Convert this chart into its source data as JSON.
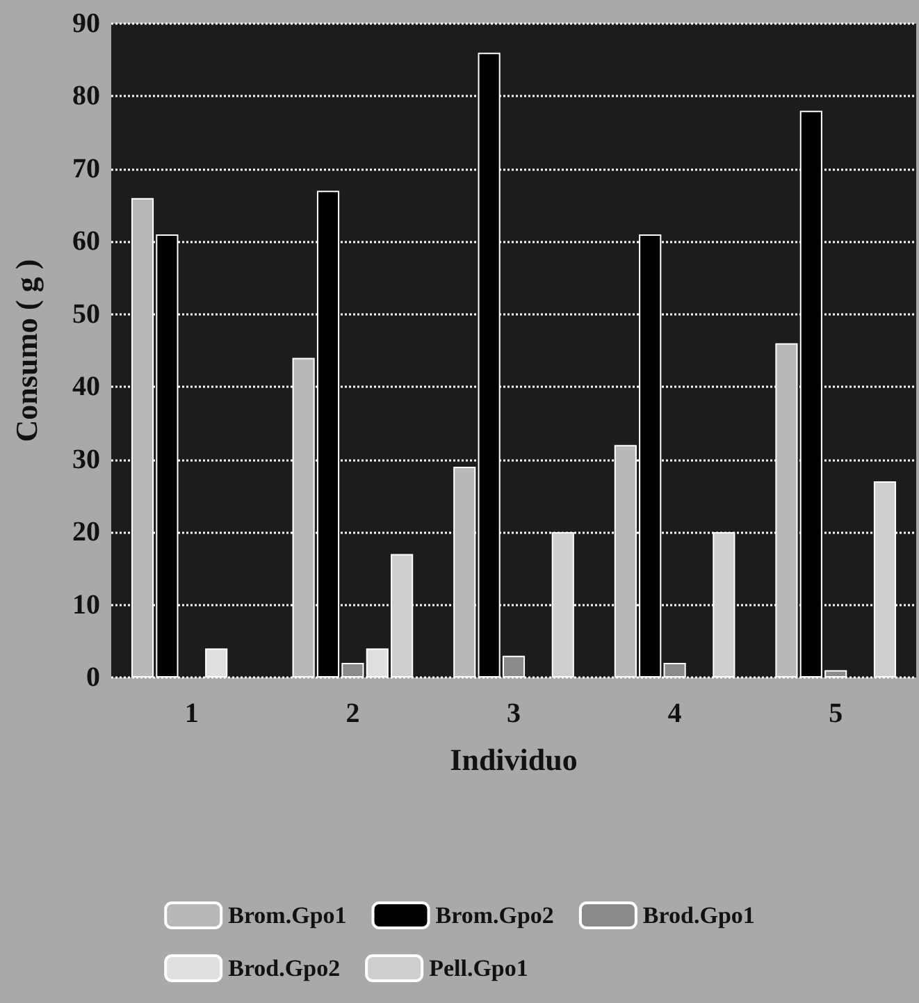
{
  "chart_data": {
    "type": "bar",
    "xlabel": "Individuo",
    "ylabel": "Consumo ( g )",
    "categories": [
      "1",
      "2",
      "3",
      "4",
      "5"
    ],
    "series": [
      {
        "name": "Brom.Gpo1",
        "color": "#b8b8b8",
        "values": [
          66,
          44,
          29,
          32,
          46
        ]
      },
      {
        "name": "Brom.Gpo2",
        "color": "#000000",
        "values": [
          61,
          67,
          86,
          61,
          78
        ]
      },
      {
        "name": "Brod.Gpo1",
        "color": "#8a8a8a",
        "values": [
          null,
          2,
          3,
          2,
          1
        ]
      },
      {
        "name": "Brod.Gpo2",
        "color": "#e0e0e0",
        "values": [
          4,
          4,
          null,
          null,
          null
        ]
      },
      {
        "name": "Pell.Gpo1",
        "color": "#cfcfcf",
        "values": [
          null,
          17,
          20,
          20,
          27
        ]
      }
    ],
    "ylim": [
      0,
      90
    ],
    "yticks": [
      0,
      10,
      20,
      30,
      40,
      50,
      60,
      70,
      80,
      90
    ],
    "grid": "y",
    "legend": "bottom"
  }
}
